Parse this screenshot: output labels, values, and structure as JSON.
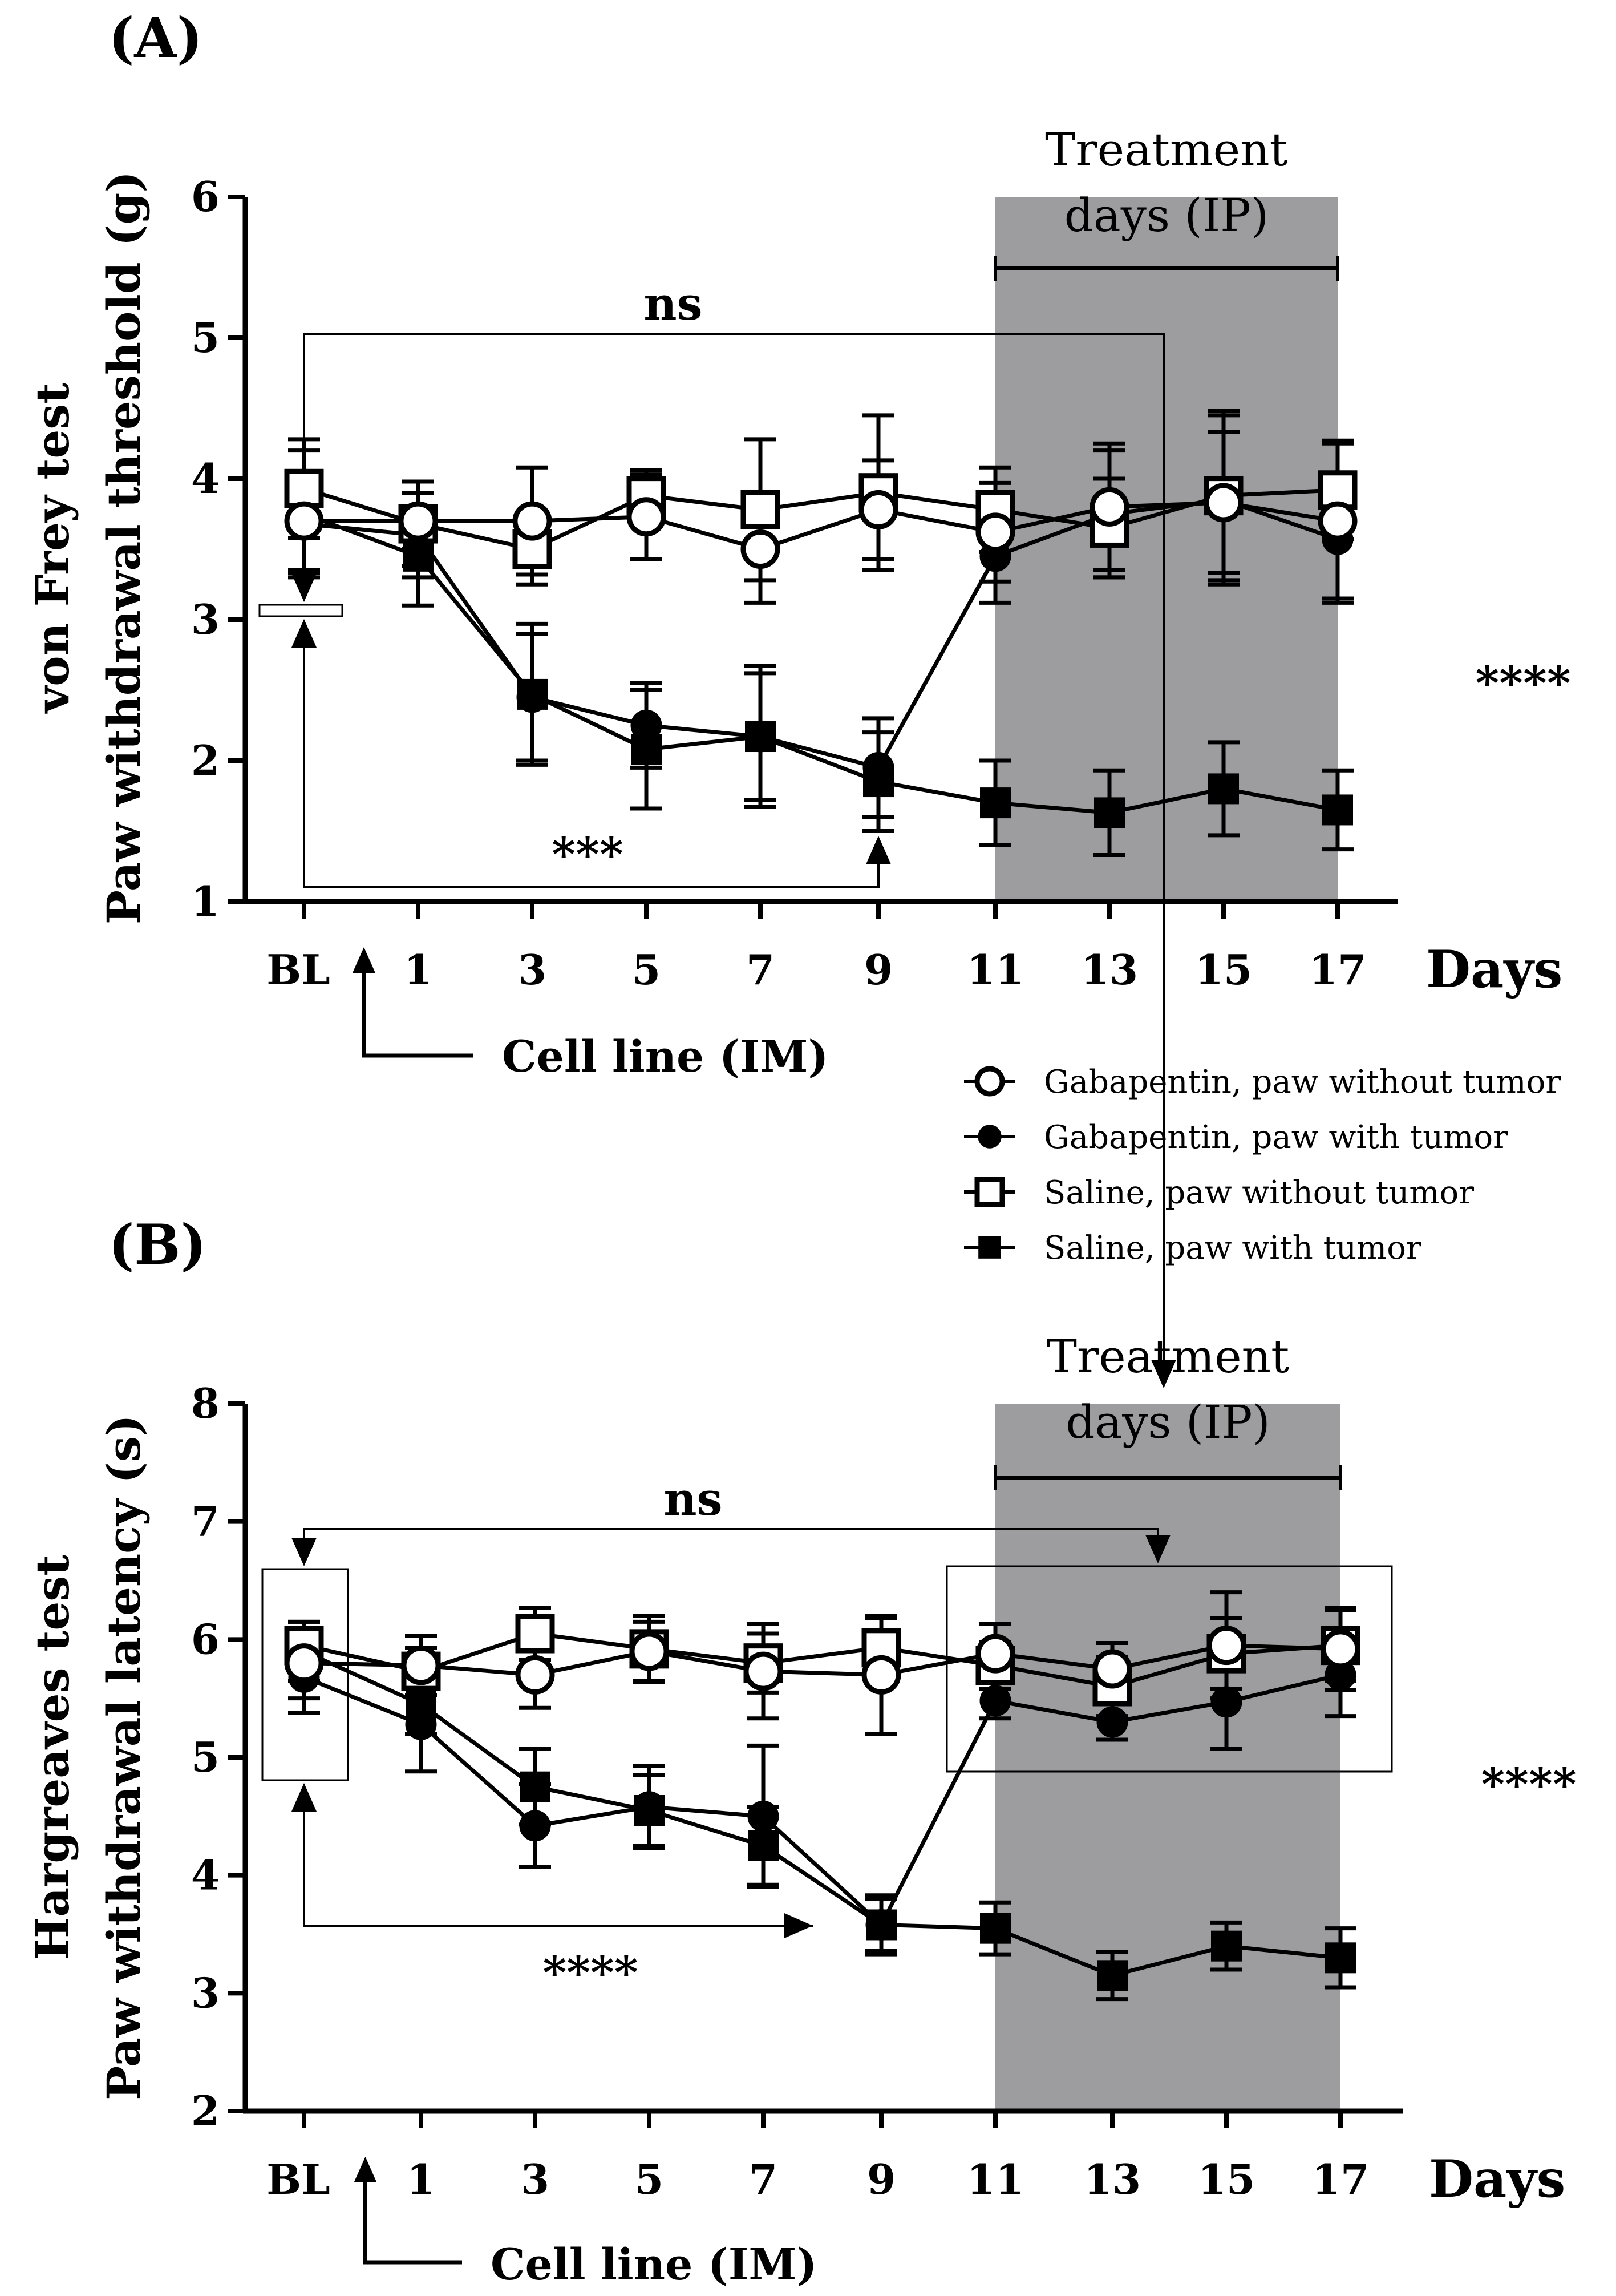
{
  "chart_data": [
    {
      "type": "line",
      "panel_label": "(A)",
      "ylabel_line1": "von Frey test",
      "ylabel_line2": "Paw withdrawal threshold (g)",
      "xlabel": "Days",
      "categories": [
        "BL",
        "1",
        "3",
        "5",
        "7",
        "9",
        "11",
        "13",
        "15",
        "17"
      ],
      "ylim": [
        1,
        6
      ],
      "yticks": [
        "1",
        "2",
        "3",
        "4",
        "5",
        "6"
      ],
      "treatment_label_line1": "Treatment",
      "treatment_label_line2": "days (IP)",
      "treatment_range": [
        "11",
        "17"
      ],
      "cell_line_label": "Cell line (IM)",
      "sig_top": "ns",
      "sig_bottom": "***",
      "sig_right": "****",
      "series": [
        {
          "name": "Gabapentin, paw without tumor",
          "marker": "open-circle",
          "values": [
            3.7,
            3.7,
            3.7,
            3.73,
            3.5,
            3.78,
            3.62,
            3.8,
            3.83,
            3.7
          ],
          "errors": [
            0.35,
            0.2,
            0.38,
            0.3,
            0.38,
            0.35,
            0.35,
            0.45,
            0.5,
            0.55
          ]
        },
        {
          "name": "Gabapentin, paw with tumor",
          "marker": "filled-circle",
          "values": [
            3.68,
            3.6,
            2.45,
            2.25,
            2.17,
            1.95,
            3.45,
            3.75,
            3.85,
            3.57
          ],
          "errors": [
            0.35,
            0.3,
            0.45,
            0.3,
            0.45,
            0.35,
            0.33,
            0.45,
            0.6,
            0.45
          ]
        },
        {
          "name": "Saline, paw without tumor",
          "marker": "open-square",
          "values": [
            3.93,
            3.68,
            3.5,
            3.88,
            3.78,
            3.9,
            3.78,
            3.65,
            3.88,
            3.92
          ],
          "errors": [
            0.35,
            0.3,
            0.25,
            0.18,
            0.5,
            0.55,
            0.3,
            0.35,
            0.6,
            0.35
          ]
        },
        {
          "name": "Saline, paw with tumor",
          "marker": "filled-square",
          "values": [
            3.75,
            3.45,
            2.47,
            2.08,
            2.17,
            1.85,
            1.7,
            1.63,
            1.8,
            1.65
          ],
          "errors": [
            0.45,
            0.35,
            0.5,
            0.42,
            0.5,
            0.35,
            0.3,
            0.3,
            0.33,
            0.28
          ]
        }
      ]
    },
    {
      "type": "line",
      "panel_label": "(B)",
      "ylabel_line1": "Hargreaves test",
      "ylabel_line2": "Paw withdrawal latency (s)",
      "xlabel": "Days",
      "categories": [
        "BL",
        "1",
        "3",
        "5",
        "7",
        "9",
        "11",
        "13",
        "15",
        "17"
      ],
      "ylim": [
        2,
        8
      ],
      "yticks": [
        "2",
        "3",
        "4",
        "5",
        "6",
        "7",
        "8"
      ],
      "treatment_label_line1": "Treatment",
      "treatment_label_line2": "days (IP)",
      "treatment_range": [
        "11",
        "17"
      ],
      "cell_line_label": "Cell line (IM)",
      "sig_top": "ns",
      "sig_bottom": "****",
      "sig_right": "****",
      "series": [
        {
          "name": "Gabapentin, paw without tumor",
          "marker": "open-circle",
          "values": [
            5.8,
            5.78,
            5.7,
            5.9,
            5.73,
            5.7,
            5.88,
            5.75,
            5.95,
            5.92
          ],
          "errors": [
            0.3,
            0.25,
            0.28,
            0.25,
            0.4,
            0.5,
            0.25,
            0.22,
            0.45,
            0.35
          ]
        },
        {
          "name": "Gabapentin, paw with tumor",
          "marker": "filled-circle",
          "values": [
            5.68,
            5.28,
            4.42,
            4.58,
            4.5,
            3.58,
            5.48,
            5.3,
            5.47,
            5.7
          ],
          "errors": [
            0.3,
            0.4,
            0.35,
            0.35,
            0.6,
            0.25,
            0.15,
            0.15,
            0.4,
            0.35
          ]
        },
        {
          "name": "Saline, paw without tumor",
          "marker": "open-square",
          "values": [
            5.95,
            5.73,
            6.05,
            5.92,
            5.8,
            5.93,
            5.78,
            5.6,
            5.88,
            5.95
          ],
          "errors": [
            0.2,
            0.2,
            0.22,
            0.28,
            0.25,
            0.25,
            0.2,
            0.25,
            0.3,
            0.3
          ]
        },
        {
          "name": "Saline, paw with tumor",
          "marker": "filled-square",
          "values": [
            5.9,
            5.45,
            4.75,
            4.55,
            4.25,
            3.58,
            3.55,
            3.15,
            3.4,
            3.3
          ],
          "errors": [
            0.25,
            0.25,
            0.32,
            0.3,
            0.33,
            0.22,
            0.22,
            0.2,
            0.2,
            0.25
          ]
        }
      ]
    }
  ]
}
